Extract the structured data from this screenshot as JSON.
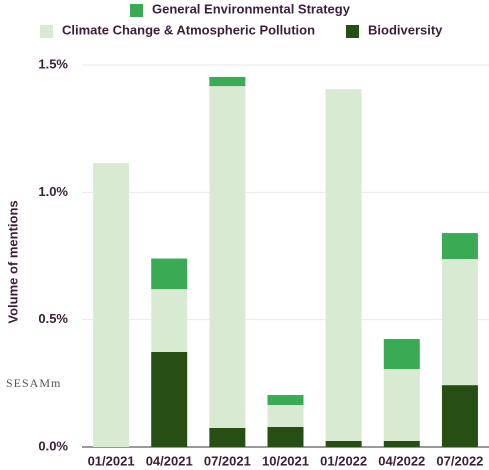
{
  "chart_data": {
    "type": "stacked_bar",
    "y_label": "Volume of mentions",
    "watermark": "SESAMm",
    "categories": [
      "01/2021",
      "04/2021",
      "07/2021",
      "10/2021",
      "01/2022",
      "04/2022",
      "07/2022"
    ],
    "series": [
      {
        "name": "Biodiversity",
        "color": "#274e13",
        "values": [
          0,
          0.373,
          0.075,
          0.079,
          0.024,
          0.024,
          0.243
        ]
      },
      {
        "name": "Climate Change & Atmospheric Pollution",
        "color": "#d9ead3",
        "values": [
          1.115,
          0.247,
          1.342,
          0.086,
          1.381,
          0.282,
          0.495
        ]
      },
      {
        "name": "General Environmental Strategy",
        "color": "#3aaa55",
        "values": [
          0,
          0.12,
          0.036,
          0.039,
          0,
          0.118,
          0.102
        ]
      }
    ],
    "ylim": [
      0,
      1.5
    ],
    "yticks": [
      {
        "value": 0,
        "label": "0.0%"
      },
      {
        "value": 0.5,
        "label": "0.5%"
      },
      {
        "value": 1,
        "label": "1.0%"
      },
      {
        "value": 1.5,
        "label": "1.5%"
      }
    ],
    "grid": true
  }
}
